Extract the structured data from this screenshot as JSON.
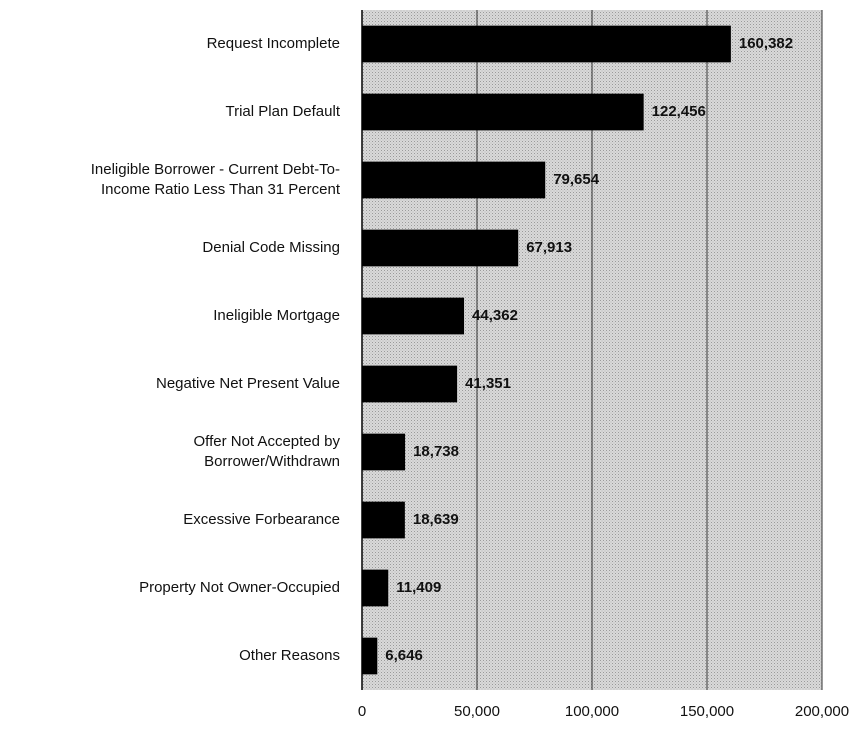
{
  "chart_data": {
    "type": "bar",
    "orientation": "horizontal",
    "categories": [
      "Request Incomplete",
      "Trial Plan Default",
      "Ineligible Borrower - Current Debt-To-\nIncome Ratio Less Than 31 Percent",
      "Denial Code Missing",
      "Ineligible Mortgage",
      "Negative Net Present Value",
      "Offer Not Accepted by\nBorrower/Withdrawn",
      "Excessive Forbearance",
      "Property Not Owner-Occupied",
      "Other Reasons"
    ],
    "values": [
      160382,
      122456,
      79654,
      67913,
      44362,
      41351,
      18738,
      18639,
      11409,
      6646
    ],
    "value_labels": [
      "160,382",
      "122,456",
      "79,654",
      "67,913",
      "44,362",
      "41,351",
      "18,738",
      "18,639",
      "11,409",
      "6,646"
    ],
    "color": "#000000",
    "xlim": [
      0,
      200000
    ],
    "xticks": [
      0,
      {
        "value": 50000,
        "label": "50,000"
      },
      {
        "value": 100000,
        "label": "100,000"
      },
      {
        "value": 150000,
        "label": "150,000"
      },
      {
        "value": 200000,
        "label": "200,000"
      }
    ],
    "grid": true
  }
}
